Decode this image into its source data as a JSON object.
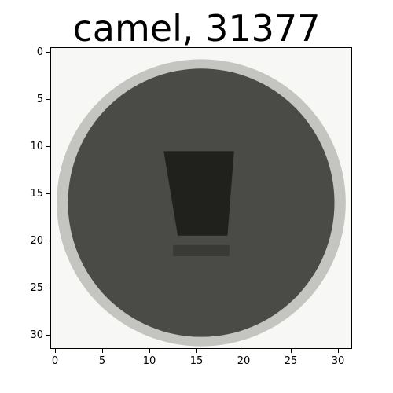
{
  "figure": {
    "title": "camel, 31377",
    "x_ticks": [
      "0",
      "5",
      "10",
      "15",
      "20",
      "25",
      "30"
    ],
    "y_ticks": [
      "0",
      "5",
      "10",
      "15",
      "20",
      "25",
      "30"
    ]
  },
  "image": {
    "description_subject": "round dark grey blob",
    "background": "#f7f8f5",
    "body_color": "#4a4a46",
    "shadow_color": "#1c1d17",
    "edge_color": "#9a9a95"
  }
}
